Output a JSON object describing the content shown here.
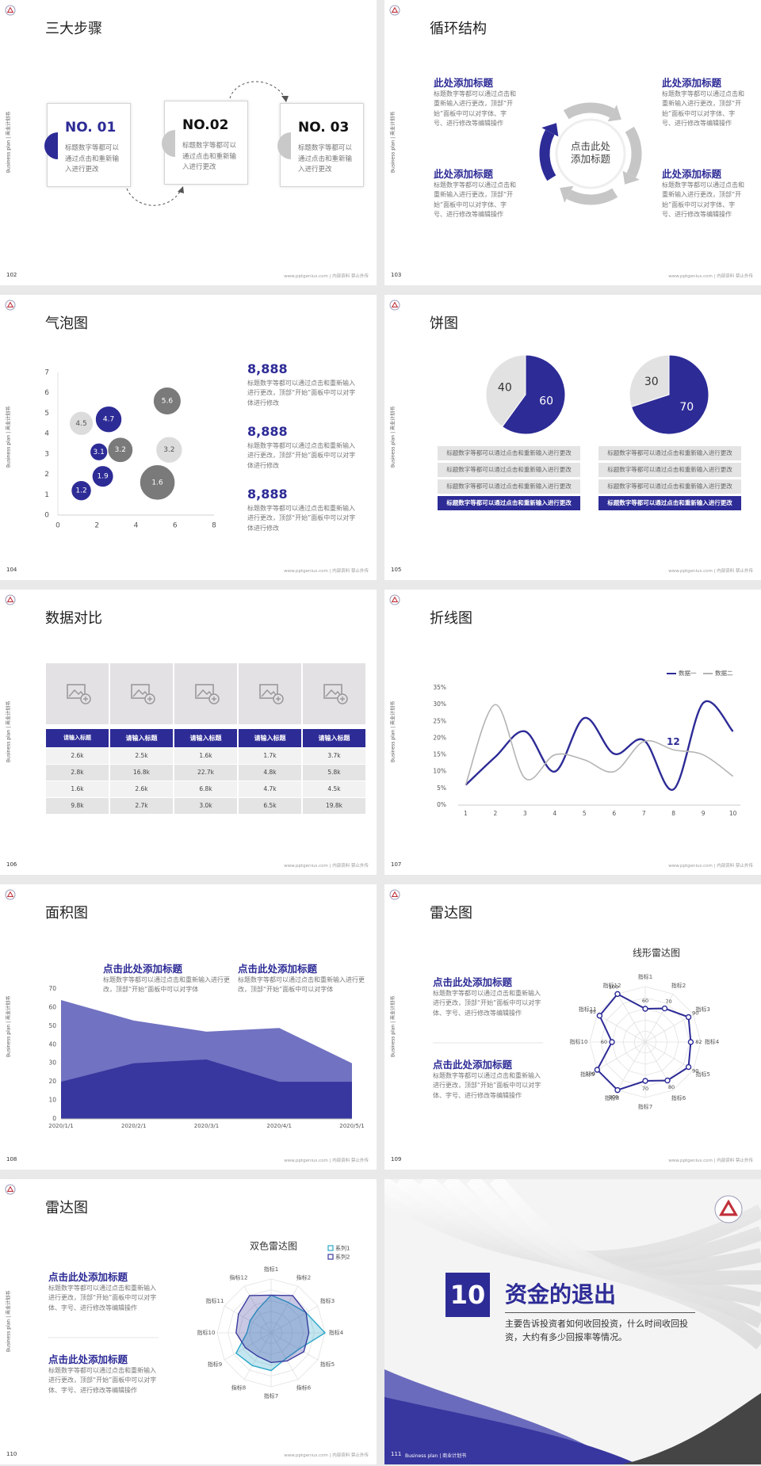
{
  "slides": [
    {
      "page": "102",
      "title": "三大步骤",
      "side_label": "Business plan | 商业计划书",
      "footer": "www.pptgenius.com | 内部资料 禁止外传",
      "steps": [
        {
          "label": "NO. 01",
          "text": "标题数字等都可以通过点击和重新输入进行更改"
        },
        {
          "label": "NO.02",
          "text": "标题数字等都可以通过点击和重新输入进行更改"
        },
        {
          "label": "NO. 03",
          "text": "标题数字等都可以通过点击和重新输入进行更改"
        }
      ]
    },
    {
      "page": "103",
      "title": "循环结构",
      "side_label": "Business plan | 商业计划书",
      "footer": "www.pptgenius.com | 内部资料 禁止外传",
      "center": "点击此处添加标题",
      "blocks": [
        {
          "heading": "此处添加标题",
          "text": "标题数字等都可以通过点击和重新输入进行更改，顶部“开始”面板中可以对字体、字号、进行修改等编辑操作"
        },
        {
          "heading": "此处添加标题",
          "text": "标题数字等都可以通过点击和重新输入进行更改，顶部“开始”面板中可以对字体、字号、进行修改等编辑操作"
        },
        {
          "heading": "此处添加标题",
          "text": "标题数字等都可以通过点击和重新输入进行更改，顶部“开始”面板中可以对字体、字号、进行修改等编辑操作"
        },
        {
          "heading": "此处添加标题",
          "text": "标题数字等都可以通过点击和重新输入进行更改，顶部“开始”面板中可以对字体、字号、进行修改等编辑操作"
        }
      ]
    },
    {
      "page": "104",
      "title": "气泡图",
      "side_label": "Business plan | 商业计划书",
      "footer": "www.pptgenius.com | 内部资料 禁止外传",
      "chart": {
        "type": "bubble",
        "xlim": [
          0,
          8
        ],
        "xticks": [
          0,
          2,
          4,
          6,
          8
        ],
        "ylim": [
          0,
          7
        ],
        "yticks": [
          0,
          1,
          2,
          3,
          4,
          5,
          6,
          7
        ],
        "series": [
          {
            "color": "#2d2b96",
            "label_color": "#ffffff",
            "x": [
              1.2,
              2.3,
              2.1,
              2.6
            ],
            "y": [
              1.2,
              1.9,
              3.1,
              4.7
            ],
            "size": [
              1.6,
              1.7,
              1.4,
              2.1
            ]
          },
          {
            "color": "#7a7a7a",
            "label_color": "#ffffff",
            "x": [
              3.2,
              5.6,
              5.1
            ],
            "y": [
              3.2,
              5.6,
              1.6
            ],
            "size": [
              2.0,
              2.2,
              2.8
            ]
          },
          {
            "color": "#dcdcdc",
            "label_color": "#555555",
            "x": [
              1.2,
              5.7
            ],
            "y": [
              4.5,
              3.2
            ],
            "size": [
              1.9,
              2.1
            ]
          }
        ]
      },
      "items": [
        {
          "value": "8,888",
          "text": "标题数字等都可以通过点击和重新输入进行更改，顶部“开始”面板中可以对字体进行修改"
        },
        {
          "value": "8,888",
          "text": "标题数字等都可以通过点击和重新输入进行更改，顶部“开始”面板中可以对字体进行修改"
        },
        {
          "value": "8,888",
          "text": "标题数字等都可以通过点击和重新输入进行更改，顶部“开始”面板中可以对字体进行修改"
        }
      ]
    },
    {
      "page": "105",
      "title": "饼图",
      "side_label": "Business plan | 商业计划书",
      "footer": "www.pptgenius.com | 内部资料 禁止外传",
      "pies": [
        {
          "type": "pie",
          "values": [
            60,
            40
          ],
          "colors": [
            "#2d2b96",
            "#e2e2e2"
          ],
          "label_colors": [
            "#ffffff",
            "#333333"
          ],
          "notes": [
            "标题数字等都可以通过点击和重新输入进行更改",
            "标题数字等都可以通过点击和重新输入进行更改",
            "标题数字等都可以通过点击和重新输入进行更改",
            "标题数字等都可以通过点击和重新输入进行更改"
          ]
        },
        {
          "type": "pie",
          "values": [
            70,
            30
          ],
          "colors": [
            "#2d2b96",
            "#e2e2e2"
          ],
          "label_colors": [
            "#ffffff",
            "#333333"
          ],
          "notes": [
            "标题数字等都可以通过点击和重新输入进行更改",
            "标题数字等都可以通过点击和重新输入进行更改",
            "标题数字等都可以通过点击和重新输入进行更改",
            "标题数字等都可以通过点击和重新输入进行更改"
          ]
        }
      ]
    },
    {
      "page": "106",
      "title": "数据对比",
      "side_label": "Business plan | 商业计划书",
      "footer": "www.pptgenius.com | 内部资料 禁止外传",
      "table": {
        "header": [
          "请输入标题",
          "请输入标题",
          "请输入标题",
          "请输入标题",
          "请输入标题"
        ],
        "rows": [
          [
            "2.6k",
            "2.5k",
            "1.6k",
            "1.7k",
            "3.7k"
          ],
          [
            "2.8k",
            "16.8k",
            "22.7k",
            "4.8k",
            "5.8k"
          ],
          [
            "1.6k",
            "2.6k",
            "6.8k",
            "4.7k",
            "4.5k"
          ],
          [
            "9.8k",
            "2.7k",
            "3.0k",
            "6.5k",
            "19.8k"
          ]
        ]
      }
    },
    {
      "page": "107",
      "title": "折线图",
      "side_label": "Business plan | 商业计划书",
      "footer": "www.pptgenius.com | 内部资料 禁止外传",
      "chart": {
        "type": "line",
        "x": [
          1,
          2,
          3,
          4,
          5,
          6,
          7,
          8,
          9,
          10
        ],
        "xlim": [
          0.75,
          10.25
        ],
        "xticks": [
          1,
          2,
          3,
          4,
          5,
          6,
          7,
          8,
          9,
          10
        ],
        "ylim": [
          0,
          35
        ],
        "yticks": [
          {
            "value": 0,
            "label": "0%"
          },
          {
            "value": 5,
            "label": "5%"
          },
          {
            "value": 10,
            "label": "10%"
          },
          {
            "value": 15,
            "label": "15%"
          },
          {
            "value": 20,
            "label": "20%"
          },
          {
            "value": 25,
            "label": "25%"
          },
          {
            "value": 30,
            "label": "30%"
          },
          {
            "value": 35,
            "label": "35%"
          }
        ],
        "annotation": "12",
        "series": [
          {
            "name": "数据一",
            "color": "#2d2b96",
            "values": [
              6,
              14.4,
              22,
              10,
              26,
              15.3,
              19.4,
              4.7,
              30.5,
              22
            ]
          },
          {
            "name": "数据二",
            "color": "#b4b4b4",
            "values": [
              6,
              30,
              8,
              15,
              13.5,
              10,
              19,
              16.5,
              15,
              8.6
            ]
          }
        ]
      }
    },
    {
      "page": "108",
      "title": "面积图",
      "side_label": "Business plan | 商业计划书",
      "footer": "www.pptgenius.com | 内部资料 禁止外传",
      "blocks": [
        {
          "heading": "点击此处添加标题",
          "text": "标题数字等都可以通过点击和重新输入进行更改，顶部“开始”面板中可以对字体"
        },
        {
          "heading": "点击此处添加标题",
          "text": "标题数字等都可以通过点击和重新输入进行更改，顶部“开始”面板中可以对字体"
        }
      ],
      "chart": {
        "type": "area",
        "categories": [
          "2020/1/1",
          "2020/2/1",
          "2020/3/1",
          "2020/4/1",
          "2020/5/1"
        ],
        "ylim": [
          0,
          70
        ],
        "yticks": [
          0,
          10,
          20,
          30,
          40,
          50,
          60,
          70
        ],
        "series": [
          {
            "color": "#7272c2",
            "values": [
              64,
              53,
              47,
              49,
              30
            ]
          },
          {
            "color": "#38379f",
            "values": [
              20,
              30,
              32,
              20,
              20
            ]
          }
        ]
      }
    },
    {
      "page": "109",
      "title": "雷达图",
      "side_label": "Business plan | 商业计划书",
      "footer": "www.pptgenius.com | 内部资料 禁止外传",
      "blocks": [
        {
          "heading": "点击此处添加标题",
          "text": "标题数字等都可以通过点击和重新输入进行更改，顶部“开始”面板中可以对字体、字号、进行修改等编辑操作"
        },
        {
          "heading": "点击此处添加标题",
          "text": "标题数字等都可以通过点击和重新输入进行更改，顶部“开始”面板中可以对字体、字号、进行修改等编辑操作"
        }
      ],
      "chart": {
        "type": "radar",
        "title": "线形雷达图",
        "categories": [
          "指标1",
          "指标2",
          "指标3",
          "指标4",
          "指标5",
          "指标6",
          "指标7",
          "指标8",
          "指标9",
          "指标10",
          "指标11",
          "指标12"
        ],
        "rlim": [
          0,
          100
        ],
        "rticks": [
          20,
          40,
          60,
          80,
          100
        ],
        "series": [
          {
            "color": "#2d2b96",
            "values": [
              60,
              70,
              90,
              82,
              90,
              80,
              70,
              100,
              100,
              60,
              95,
              100
            ]
          }
        ]
      }
    },
    {
      "page": "110",
      "title": "雷达图",
      "side_label": "Business plan | 商业计划书",
      "footer": "www.pptgenius.com | 内部资料 禁止外传",
      "blocks": [
        {
          "heading": "点击此处添加标题",
          "text": "标题数字等都可以通过点击和重新输入进行更改，顶部“开始”面板中可以对字体、字号、进行修改等编辑操作"
        },
        {
          "heading": "点击此处添加标题",
          "text": "标题数字等都可以通过点击和重新输入进行更改，顶部“开始”面板中可以对字体、字号、进行修改等编辑操作"
        }
      ],
      "chart": {
        "type": "radar",
        "title": "双色雷达图",
        "categories": [
          "指标1",
          "指标2",
          "指标3",
          "指标4",
          "指标5",
          "指标6",
          "指标7",
          "指标8",
          "指标9",
          "指标10",
          "指标11",
          "指标12"
        ],
        "rlim": [
          0,
          100
        ],
        "rticks": [
          20,
          40,
          60,
          80,
          100
        ],
        "series": [
          {
            "name": "系列1",
            "color": "#2aa6c8",
            "values": [
              70,
              65,
              75,
              100,
              60,
              55,
              70,
              70,
              75,
              45,
              45,
              50
            ]
          },
          {
            "name": "系列2",
            "color": "#3a3a9e",
            "values": [
              70,
              80,
              75,
              70,
              70,
              60,
              55,
              50,
              55,
              65,
              70,
              80
            ]
          }
        ]
      }
    },
    {
      "page": "111",
      "number": "10",
      "title": "资金的退出",
      "description": "主要告诉投资者如何收回投资，什么时间收回投资，大约有多少回报率等情况。",
      "footer": "Business plan | 商业计划书"
    }
  ]
}
